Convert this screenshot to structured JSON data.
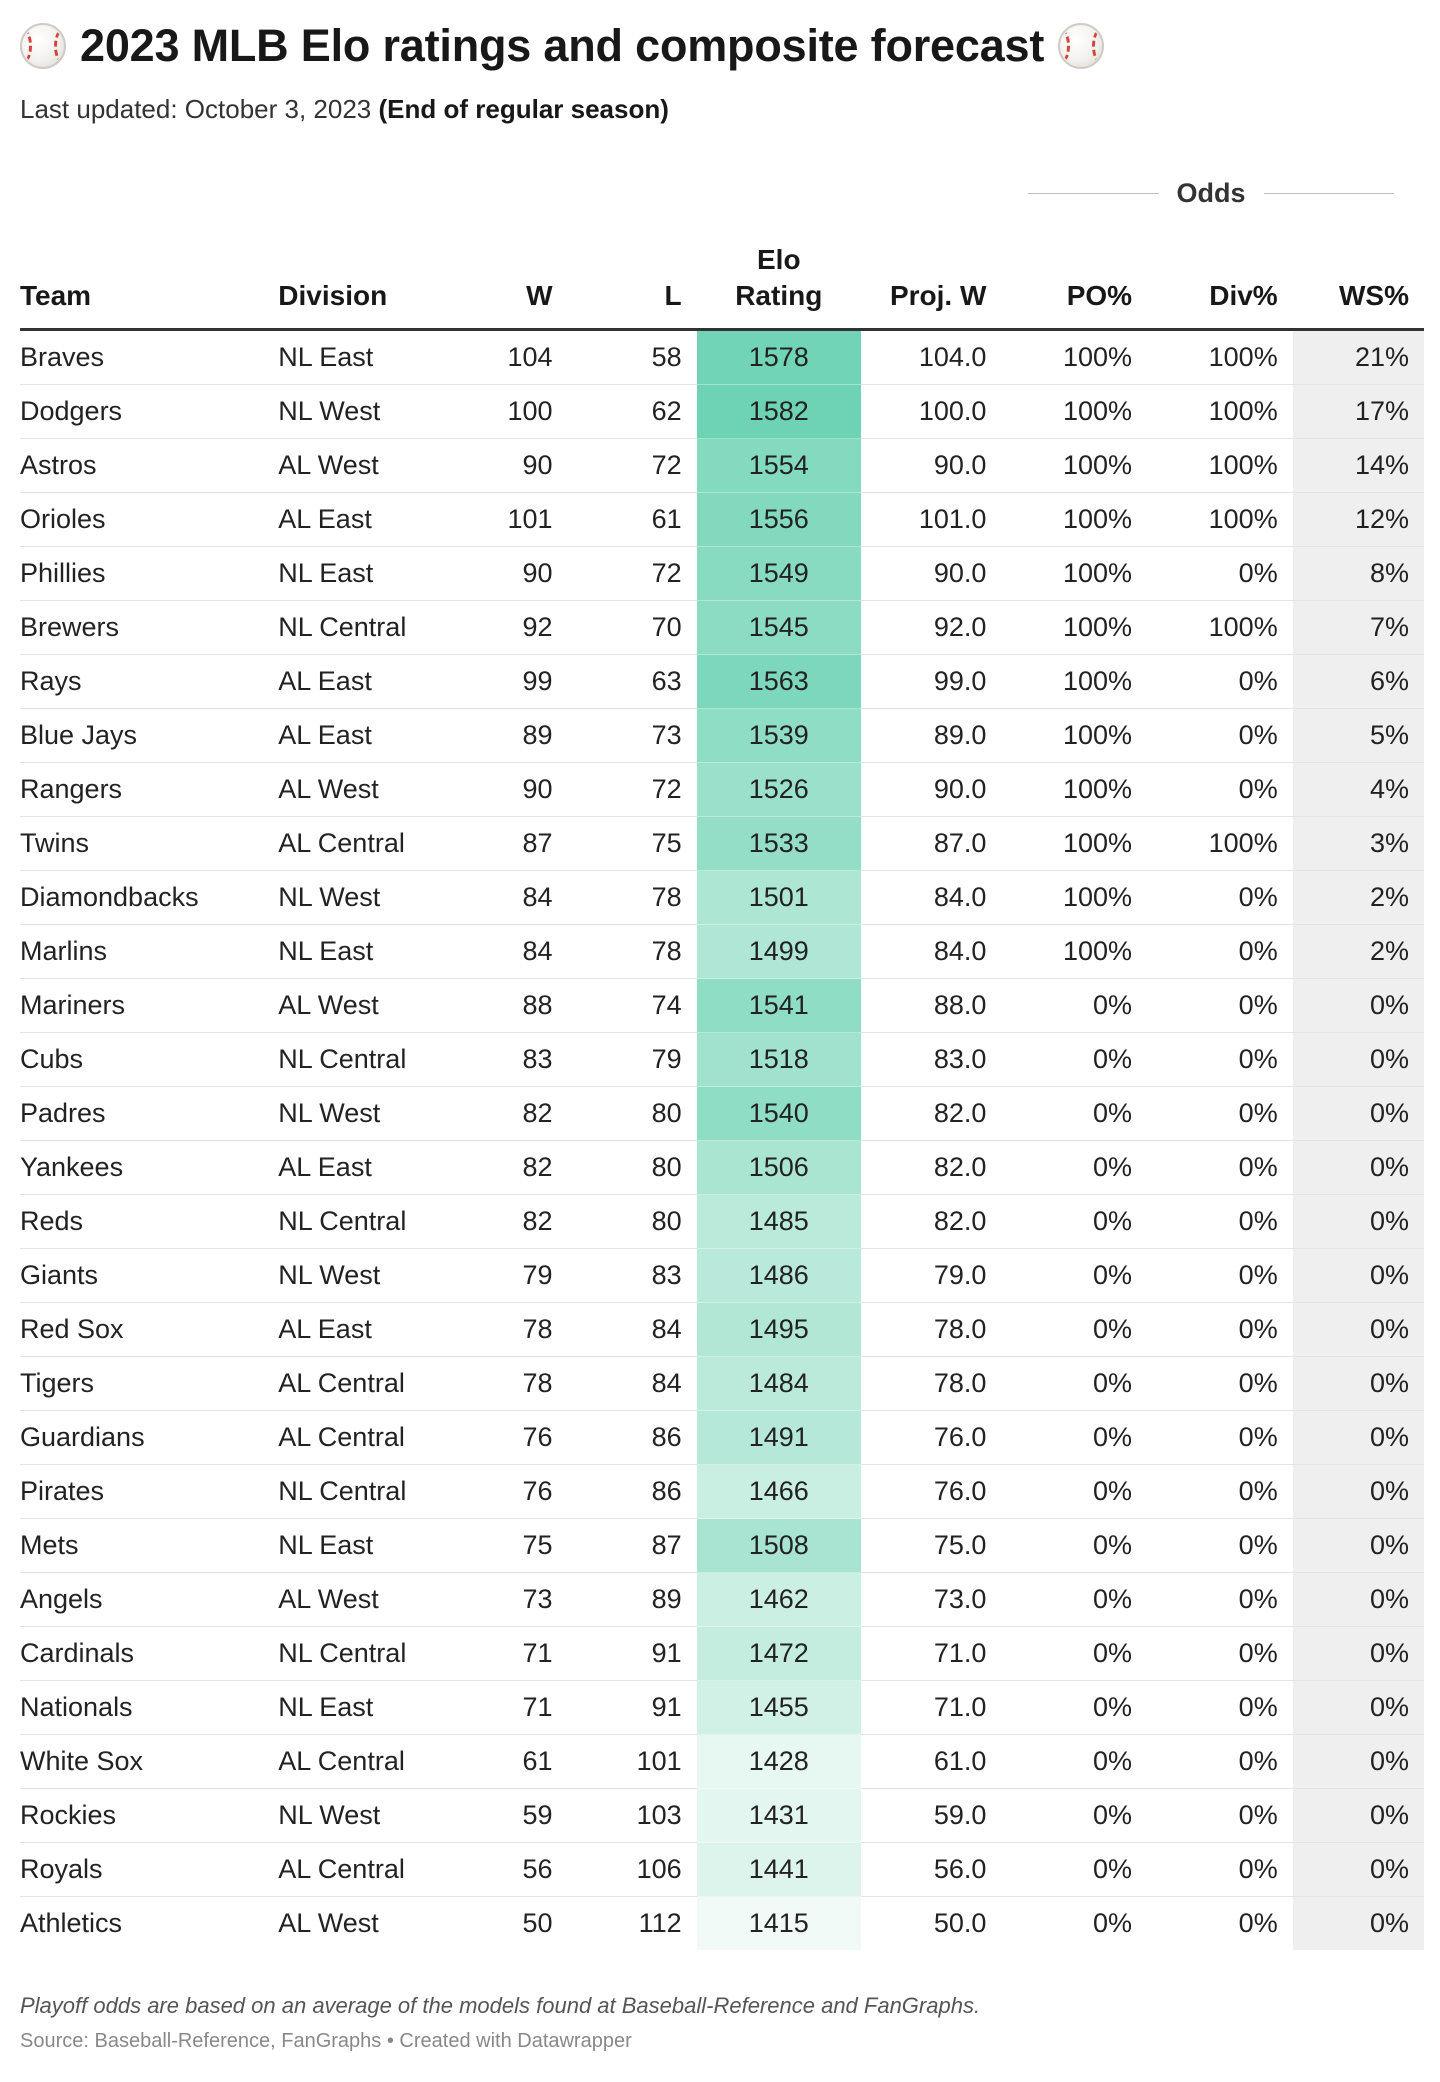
{
  "header": {
    "title": "2023 MLB Elo ratings and composite forecast",
    "subtitle_prefix": "Last updated: October 3, 2023",
    "subtitle_bold": "(End of regular season)",
    "icon": "baseball-icon"
  },
  "table": {
    "group_header": "Odds",
    "columns": {
      "team": "Team",
      "division": "Division",
      "w": "W",
      "l": "L",
      "elo_line1": "Elo",
      "elo_line2": "Rating",
      "proj_w": "Proj. W",
      "po": "PO%",
      "div": "Div%",
      "ws": "WS%"
    },
    "rows": [
      {
        "team": "Braves",
        "division": "NL East",
        "w": "104",
        "l": "58",
        "elo": "1578",
        "proj_w": "104.0",
        "po": "100%",
        "div": "100%",
        "ws": "21%"
      },
      {
        "team": "Dodgers",
        "division": "NL West",
        "w": "100",
        "l": "62",
        "elo": "1582",
        "proj_w": "100.0",
        "po": "100%",
        "div": "100%",
        "ws": "17%"
      },
      {
        "team": "Astros",
        "division": "AL West",
        "w": "90",
        "l": "72",
        "elo": "1554",
        "proj_w": "90.0",
        "po": "100%",
        "div": "100%",
        "ws": "14%"
      },
      {
        "team": "Orioles",
        "division": "AL East",
        "w": "101",
        "l": "61",
        "elo": "1556",
        "proj_w": "101.0",
        "po": "100%",
        "div": "100%",
        "ws": "12%"
      },
      {
        "team": "Phillies",
        "division": "NL East",
        "w": "90",
        "l": "72",
        "elo": "1549",
        "proj_w": "90.0",
        "po": "100%",
        "div": "0%",
        "ws": "8%"
      },
      {
        "team": "Brewers",
        "division": "NL Central",
        "w": "92",
        "l": "70",
        "elo": "1545",
        "proj_w": "92.0",
        "po": "100%",
        "div": "100%",
        "ws": "7%"
      },
      {
        "team": "Rays",
        "division": "AL East",
        "w": "99",
        "l": "63",
        "elo": "1563",
        "proj_w": "99.0",
        "po": "100%",
        "div": "0%",
        "ws": "6%"
      },
      {
        "team": "Blue Jays",
        "division": "AL East",
        "w": "89",
        "l": "73",
        "elo": "1539",
        "proj_w": "89.0",
        "po": "100%",
        "div": "0%",
        "ws": "5%"
      },
      {
        "team": "Rangers",
        "division": "AL West",
        "w": "90",
        "l": "72",
        "elo": "1526",
        "proj_w": "90.0",
        "po": "100%",
        "div": "0%",
        "ws": "4%"
      },
      {
        "team": "Twins",
        "division": "AL Central",
        "w": "87",
        "l": "75",
        "elo": "1533",
        "proj_w": "87.0",
        "po": "100%",
        "div": "100%",
        "ws": "3%"
      },
      {
        "team": "Diamondbacks",
        "division": "NL West",
        "w": "84",
        "l": "78",
        "elo": "1501",
        "proj_w": "84.0",
        "po": "100%",
        "div": "0%",
        "ws": "2%"
      },
      {
        "team": "Marlins",
        "division": "NL East",
        "w": "84",
        "l": "78",
        "elo": "1499",
        "proj_w": "84.0",
        "po": "100%",
        "div": "0%",
        "ws": "2%"
      },
      {
        "team": "Mariners",
        "division": "AL West",
        "w": "88",
        "l": "74",
        "elo": "1541",
        "proj_w": "88.0",
        "po": "0%",
        "div": "0%",
        "ws": "0%"
      },
      {
        "team": "Cubs",
        "division": "NL Central",
        "w": "83",
        "l": "79",
        "elo": "1518",
        "proj_w": "83.0",
        "po": "0%",
        "div": "0%",
        "ws": "0%"
      },
      {
        "team": "Padres",
        "division": "NL West",
        "w": "82",
        "l": "80",
        "elo": "1540",
        "proj_w": "82.0",
        "po": "0%",
        "div": "0%",
        "ws": "0%"
      },
      {
        "team": "Yankees",
        "division": "AL East",
        "w": "82",
        "l": "80",
        "elo": "1506",
        "proj_w": "82.0",
        "po": "0%",
        "div": "0%",
        "ws": "0%"
      },
      {
        "team": "Reds",
        "division": "NL Central",
        "w": "82",
        "l": "80",
        "elo": "1485",
        "proj_w": "82.0",
        "po": "0%",
        "div": "0%",
        "ws": "0%"
      },
      {
        "team": "Giants",
        "division": "NL West",
        "w": "79",
        "l": "83",
        "elo": "1486",
        "proj_w": "79.0",
        "po": "0%",
        "div": "0%",
        "ws": "0%"
      },
      {
        "team": "Red Sox",
        "division": "AL East",
        "w": "78",
        "l": "84",
        "elo": "1495",
        "proj_w": "78.0",
        "po": "0%",
        "div": "0%",
        "ws": "0%"
      },
      {
        "team": "Tigers",
        "division": "AL Central",
        "w": "78",
        "l": "84",
        "elo": "1484",
        "proj_w": "78.0",
        "po": "0%",
        "div": "0%",
        "ws": "0%"
      },
      {
        "team": "Guardians",
        "division": "AL Central",
        "w": "76",
        "l": "86",
        "elo": "1491",
        "proj_w": "76.0",
        "po": "0%",
        "div": "0%",
        "ws": "0%"
      },
      {
        "team": "Pirates",
        "division": "NL Central",
        "w": "76",
        "l": "86",
        "elo": "1466",
        "proj_w": "76.0",
        "po": "0%",
        "div": "0%",
        "ws": "0%"
      },
      {
        "team": "Mets",
        "division": "NL East",
        "w": "75",
        "l": "87",
        "elo": "1508",
        "proj_w": "75.0",
        "po": "0%",
        "div": "0%",
        "ws": "0%"
      },
      {
        "team": "Angels",
        "division": "AL West",
        "w": "73",
        "l": "89",
        "elo": "1462",
        "proj_w": "73.0",
        "po": "0%",
        "div": "0%",
        "ws": "0%"
      },
      {
        "team": "Cardinals",
        "division": "NL Central",
        "w": "71",
        "l": "91",
        "elo": "1472",
        "proj_w": "71.0",
        "po": "0%",
        "div": "0%",
        "ws": "0%"
      },
      {
        "team": "Nationals",
        "division": "NL East",
        "w": "71",
        "l": "91",
        "elo": "1455",
        "proj_w": "71.0",
        "po": "0%",
        "div": "0%",
        "ws": "0%"
      },
      {
        "team": "White Sox",
        "division": "AL Central",
        "w": "61",
        "l": "101",
        "elo": "1428",
        "proj_w": "61.0",
        "po": "0%",
        "div": "0%",
        "ws": "0%"
      },
      {
        "team": "Rockies",
        "division": "NL West",
        "w": "59",
        "l": "103",
        "elo": "1431",
        "proj_w": "59.0",
        "po": "0%",
        "div": "0%",
        "ws": "0%"
      },
      {
        "team": "Royals",
        "division": "AL Central",
        "w": "56",
        "l": "106",
        "elo": "1441",
        "proj_w": "56.0",
        "po": "0%",
        "div": "0%",
        "ws": "0%"
      },
      {
        "team": "Athletics",
        "division": "AL West",
        "w": "50",
        "l": "112",
        "elo": "1415",
        "proj_w": "50.0",
        "po": "0%",
        "div": "0%",
        "ws": "0%"
      }
    ],
    "elo_scale": {
      "min": 1415,
      "max": 1582,
      "color_low": "#f1faf6",
      "color_high": "#6ed3b4"
    }
  },
  "footer": {
    "note": "Playoff odds are based on an average of the models found at Baseball-Reference and FanGraphs.",
    "source": "Source: Baseball-Reference, FanGraphs • Created with Datawrapper"
  }
}
